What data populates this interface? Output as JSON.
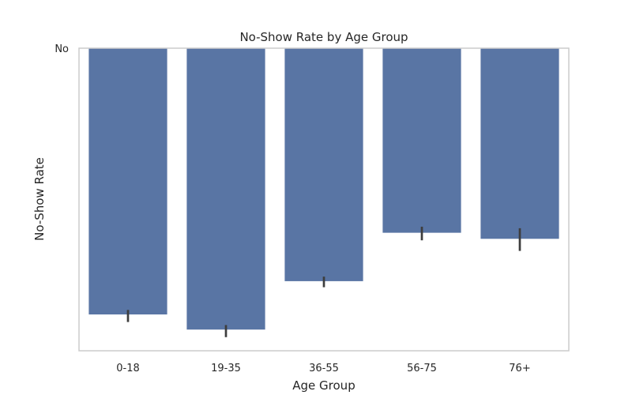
{
  "chart_data": {
    "type": "bar",
    "title": "No-Show Rate by Age Group",
    "xlabel": "Age Group",
    "ylabel": "No-Show Rate",
    "y_tick_labels": [
      "No"
    ],
    "y_axis_direction": "inverted",
    "ylim": [
      0,
      1.0
    ],
    "categories": [
      "0-18",
      "19-35",
      "36-55",
      "56-75",
      "76+"
    ],
    "values": [
      0.88,
      0.93,
      0.77,
      0.61,
      0.63
    ],
    "error_low": [
      0.865,
      0.915,
      0.755,
      0.59,
      0.595
    ],
    "error_high": [
      0.905,
      0.955,
      0.79,
      0.635,
      0.67
    ],
    "bar_color": "#5975a4",
    "errorbar_color": "#3d3d3d",
    "grid": false
  }
}
